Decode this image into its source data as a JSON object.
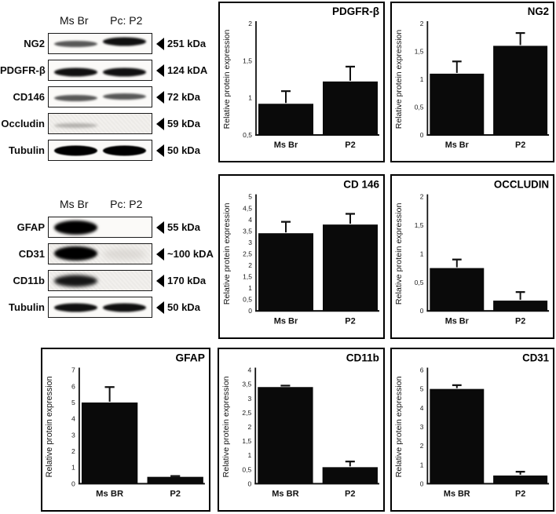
{
  "figure": {
    "background": "#ffffff",
    "bar_color": "#0a0a0a",
    "border_color": "#000000",
    "axis_color": "#111111"
  },
  "blot_panels": [
    {
      "name": "pericyte-marker-blots",
      "lane_labels": [
        "Ms Br",
        "Pc: P2"
      ],
      "rows": [
        {
          "label": "NG2",
          "weight": "251 kDa",
          "bg": "clean",
          "bands": [
            {
              "style": "medium"
            },
            {
              "style": "strong",
              "shift": -3
            }
          ]
        },
        {
          "label": "PDGFR-β",
          "weight": "124 kDA",
          "bg": "clean",
          "bands": [
            {
              "style": "strong",
              "shift": 2
            },
            {
              "style": "strong",
              "shift": 2
            }
          ]
        },
        {
          "label": "CD146",
          "weight": "72 kDa",
          "bg": "clean",
          "bands": [
            {
              "style": "medium",
              "shift": 1
            },
            {
              "style": "medium",
              "shift": -1
            }
          ]
        },
        {
          "label": "Occludin",
          "weight": "59 kDa",
          "bg": "noisy",
          "bands": [
            {
              "style": "faint",
              "shift": 2
            },
            {
              "style": "none"
            }
          ]
        },
        {
          "label": "Tubulin",
          "weight": "50 kDa",
          "bg": "clean",
          "bands": [
            {
              "style": "heavy"
            },
            {
              "style": "heavy"
            }
          ]
        }
      ]
    },
    {
      "name": "brain-cell-marker-blots",
      "lane_labels": [
        "Ms Br",
        "Pc: P2"
      ],
      "rows": [
        {
          "label": "GFAP",
          "weight": "55 kDa",
          "bg": "clean",
          "bands": [
            {
              "style": "blob"
            },
            {
              "style": "none"
            }
          ]
        },
        {
          "label": "CD31",
          "weight": "~100 kDA",
          "bg": "noisy",
          "bands": [
            {
              "style": "blob",
              "shift": -1
            },
            {
              "style": "smudge"
            }
          ]
        },
        {
          "label": "CD11b",
          "weight": "170 kDa",
          "bg": "noisy",
          "bands": [
            {
              "style": "heavy-fuzzy"
            },
            {
              "style": "none"
            }
          ]
        },
        {
          "label": "Tubulin",
          "weight": "50 kDa",
          "bg": "clean",
          "bands": [
            {
              "style": "strong"
            },
            {
              "style": "strong"
            }
          ]
        }
      ]
    }
  ],
  "chart_data": [
    {
      "id": "pdgfr-beta",
      "type": "bar",
      "title": "PDGFR-β",
      "ylabel": "Relative protein expression",
      "categories": [
        "Ms Br",
        "P2"
      ],
      "values": [
        0.92,
        1.22
      ],
      "errors": [
        0.17,
        0.2
      ],
      "ylim": [
        0.5,
        2
      ],
      "yticks": [
        0.5,
        1,
        1.5,
        2
      ],
      "ytick_labels": [
        "0,5",
        "1",
        "1,5",
        "2"
      ],
      "grid": false
    },
    {
      "id": "ng2",
      "type": "bar",
      "title": "NG2",
      "ylabel": "Relative protein expression",
      "categories": [
        "Ms Br",
        "P2"
      ],
      "values": [
        1.1,
        1.6
      ],
      "errors": [
        0.22,
        0.23
      ],
      "ylim": [
        0,
        2
      ],
      "yticks": [
        0,
        0.5,
        1,
        1.5,
        2
      ],
      "ytick_labels": [
        "0",
        "0,5",
        "1",
        "1,5",
        "2"
      ],
      "grid": false
    },
    {
      "id": "cd146",
      "type": "bar",
      "title": "CD 146",
      "ylabel": "Relative protein expression",
      "categories": [
        "Ms Br",
        "P2"
      ],
      "values": [
        3.4,
        3.78
      ],
      "errors": [
        0.5,
        0.47
      ],
      "ylim": [
        0,
        5
      ],
      "yticks": [
        0,
        0.5,
        1,
        1.5,
        2,
        2.5,
        3,
        3.5,
        4,
        4.5,
        5
      ],
      "ytick_labels": [
        "0",
        "0,5",
        "1",
        "1,5",
        "2",
        "2,5",
        "3",
        "3,5",
        "4",
        "4,5",
        "5"
      ],
      "grid": false
    },
    {
      "id": "occludin",
      "type": "bar",
      "title": "OCCLUDIN",
      "ylabel": "Relative protein expression",
      "categories": [
        "Ms Br",
        "P2"
      ],
      "values": [
        0.75,
        0.18
      ],
      "errors": [
        0.15,
        0.15
      ],
      "ylim": [
        0,
        2
      ],
      "yticks": [
        0,
        0.5,
        1,
        1.5,
        2
      ],
      "ytick_labels": [
        "0",
        "0,5",
        "1",
        "1,5",
        "2"
      ],
      "grid": false
    },
    {
      "id": "gfap",
      "type": "bar",
      "title": "GFAP",
      "ylabel": "Relative protein expression",
      "categories": [
        "Ms BR",
        "P2"
      ],
      "values": [
        5.0,
        0.42
      ],
      "errors": [
        0.95,
        0.05
      ],
      "ylim": [
        0,
        7
      ],
      "yticks": [
        0,
        1,
        2,
        3,
        4,
        5,
        6,
        7
      ],
      "ytick_labels": [
        "0",
        "1",
        "2",
        "3",
        "4",
        "5",
        "6",
        "7"
      ],
      "grid": false
    },
    {
      "id": "cd11b",
      "type": "bar",
      "title": "CD11b",
      "ylabel": "Relative protein expression",
      "categories": [
        "Ms BR",
        "P2"
      ],
      "values": [
        3.4,
        0.58
      ],
      "errors": [
        0.05,
        0.2
      ],
      "ylim": [
        0,
        4
      ],
      "yticks": [
        0,
        0.5,
        1,
        1.5,
        2,
        2.5,
        3,
        3.5,
        4
      ],
      "ytick_labels": [
        "0",
        "0,5",
        "1",
        "1,5",
        "2",
        "2,5",
        "3",
        "3,5",
        "4"
      ],
      "grid": false
    },
    {
      "id": "cd31",
      "type": "bar",
      "title": "CD31",
      "ylabel": "Relative protein expression",
      "categories": [
        "Ms BR",
        "P2"
      ],
      "values": [
        5.0,
        0.43
      ],
      "errors": [
        0.2,
        0.2
      ],
      "ylim": [
        0,
        6
      ],
      "yticks": [
        0,
        1,
        2,
        3,
        4,
        5,
        6
      ],
      "ytick_labels": [
        "0",
        "1",
        "2",
        "3",
        "4",
        "5",
        "6"
      ],
      "grid": false
    }
  ]
}
